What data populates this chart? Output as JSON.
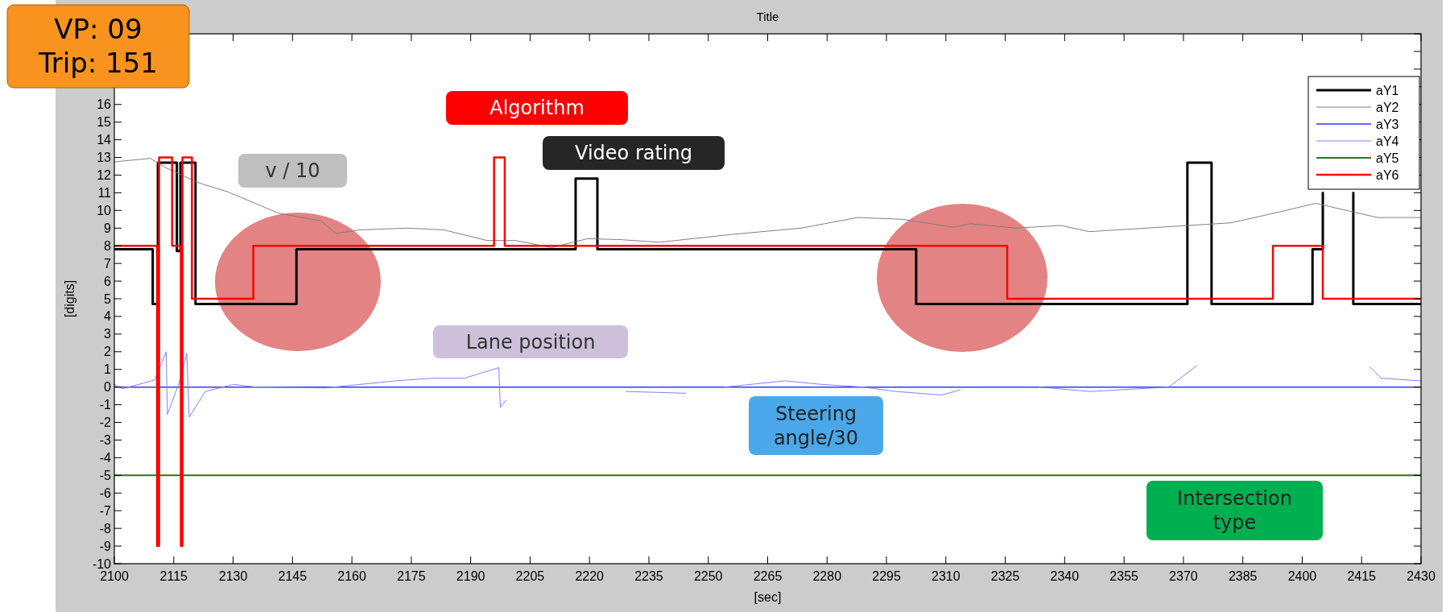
{
  "chart_data": {
    "type": "line",
    "title": "Title",
    "xlabel": "[sec]",
    "ylabel": "[digits]",
    "xlim": [
      2100,
      2430
    ],
    "xticks": [
      2100,
      2115,
      2130,
      2145,
      2160,
      2175,
      2190,
      2205,
      2220,
      2235,
      2250,
      2265,
      2280,
      2295,
      2310,
      2325,
      2340,
      2355,
      2370,
      2385,
      2400,
      2415,
      2430
    ],
    "ylim": [
      -10,
      20
    ],
    "yticks": [
      -10,
      -9,
      -8,
      -7,
      -6,
      -5,
      -4,
      -3,
      -2,
      -1,
      0,
      1,
      2,
      3,
      4,
      5,
      6,
      7,
      8,
      9,
      10,
      11,
      12,
      13,
      14,
      15,
      16,
      {
        "value": 17,
        "label": null
      },
      {
        "value": 18,
        "label": null
      },
      {
        "value": 19,
        "label": null
      },
      {
        "value": 20,
        "label": null
      }
    ],
    "legend": "top right",
    "annotations": [
      "VP: 09",
      "Trip: 151",
      "Algorithm",
      "Video rating",
      "v / 10",
      "Lane position",
      "Steering angle/30",
      "Intersection type"
    ],
    "series": [
      {
        "name": "aY1",
        "color": "#000000",
        "x": [
          2100,
          2109.7,
          2109.7,
          2111,
          2111,
          2115.8,
          2115.8,
          2116.7,
          2116.7,
          2120.5,
          2120.5,
          2146,
          2146,
          2216.5,
          2216.5,
          2222,
          2222,
          2302.5,
          2302.5,
          2371,
          2371,
          2377.1,
          2377.1,
          2402.6,
          2402.6,
          2405.2,
          2405.2,
          2409,
          2412.9,
          2412.9,
          2430
        ],
        "values": [
          7.8,
          7.8,
          4.7,
          4.7,
          12.7,
          12.7,
          7.7,
          7.7,
          12.7,
          12.7,
          4.7,
          4.7,
          7.8,
          7.8,
          11.8,
          11.8,
          7.8,
          7.8,
          4.7,
          4.7,
          12.7,
          12.7,
          4.7,
          4.7,
          7.8,
          7.8,
          11,
          null,
          11,
          4.7,
          4.7
        ]
      },
      {
        "name": "aY2",
        "color": "#808080",
        "x": [
          2100,
          2109.1,
          2113.2,
          2121.5,
          2128.7,
          2141.4,
          2152.3,
          2155.9,
          2162.2,
          2174,
          2183.2,
          2194.1,
          2201.3,
          2210.4,
          2219.5,
          2227.7,
          2237.7,
          2256.3,
          2273.5,
          2287.7,
          2299,
          2312,
          2316.2,
          2327.7,
          2339,
          2346.2,
          2367.7,
          2382,
          2392,
          2403.4,
          2419,
          2430
        ],
        "values": [
          12.75,
          12.95,
          12.4,
          11.55,
          11.05,
          9.85,
          9.4,
          8.7,
          8.9,
          9.0,
          8.9,
          8.3,
          8.3,
          7.9,
          8.4,
          8.35,
          8.2,
          8.65,
          9.0,
          9.6,
          9.5,
          9.05,
          9.25,
          9.0,
          9.15,
          8.8,
          9.1,
          9.3,
          9.8,
          10.4,
          9.6,
          9.6
        ]
      },
      {
        "name": "aY3",
        "color": "#3333ff",
        "x": [
          2100,
          2430
        ],
        "values": [
          0,
          0
        ]
      },
      {
        "name": "aY4",
        "color": "#8080ff",
        "x": [
          2100,
          2102,
          2110.2,
          2113.1,
          2113.4,
          2116.6,
          2118.3,
          2118.9,
          2123,
          2130,
          2135.8,
          2153.3,
          2170.9,
          2180.2,
          2188.4,
          2197.1,
          2197.5,
          2198.9,
          2214,
          2229.2,
          2244.4,
          2250,
          2254.1,
          2269.3,
          2278.7,
          2289.2,
          2297.4,
          2309,
          2313.7,
          2320,
          2333.6,
          2346.5,
          2366.3,
          2373.3,
          2400,
          2417.1,
          2420,
          2430
        ],
        "values": [
          0.15,
          -0.1,
          0.4,
          2.0,
          -1.55,
          0.4,
          1.9,
          -1.7,
          -0.25,
          0.15,
          0,
          -0.05,
          0.35,
          0.5,
          0.5,
          1.1,
          -1.15,
          -0.75,
          null,
          -0.25,
          -0.35,
          null,
          0,
          0.35,
          0.15,
          0,
          -0.25,
          -0.45,
          -0.15,
          null,
          0,
          -0.25,
          0,
          1.2,
          null,
          1.15,
          0.5,
          0.35
        ]
      },
      {
        "name": "aY5",
        "color": "#1f7a1f",
        "x": [
          2100,
          2430
        ],
        "values": [
          -5,
          -5
        ]
      },
      {
        "name": "aY6",
        "color": "#ff0000",
        "x": [
          2100,
          2110.8,
          2110.8,
          2111.3,
          2111.3,
          2114.6,
          2114.6,
          2116.8,
          2116.8,
          2117.2,
          2117.2,
          2119.6,
          2119.6,
          2135.1,
          2135.1,
          2195.9,
          2195.9,
          2198.6,
          2198.6,
          2325.5,
          2325.5,
          2392.6,
          2392.6,
          2405.2,
          2405.2,
          2430
        ],
        "values": [
          8,
          8,
          -9,
          -9,
          13,
          13,
          8,
          8,
          -9,
          -9,
          13,
          13,
          5,
          5,
          8,
          8,
          13,
          13,
          8,
          8,
          5,
          5,
          8,
          8,
          5,
          5
        ]
      }
    ]
  }
}
